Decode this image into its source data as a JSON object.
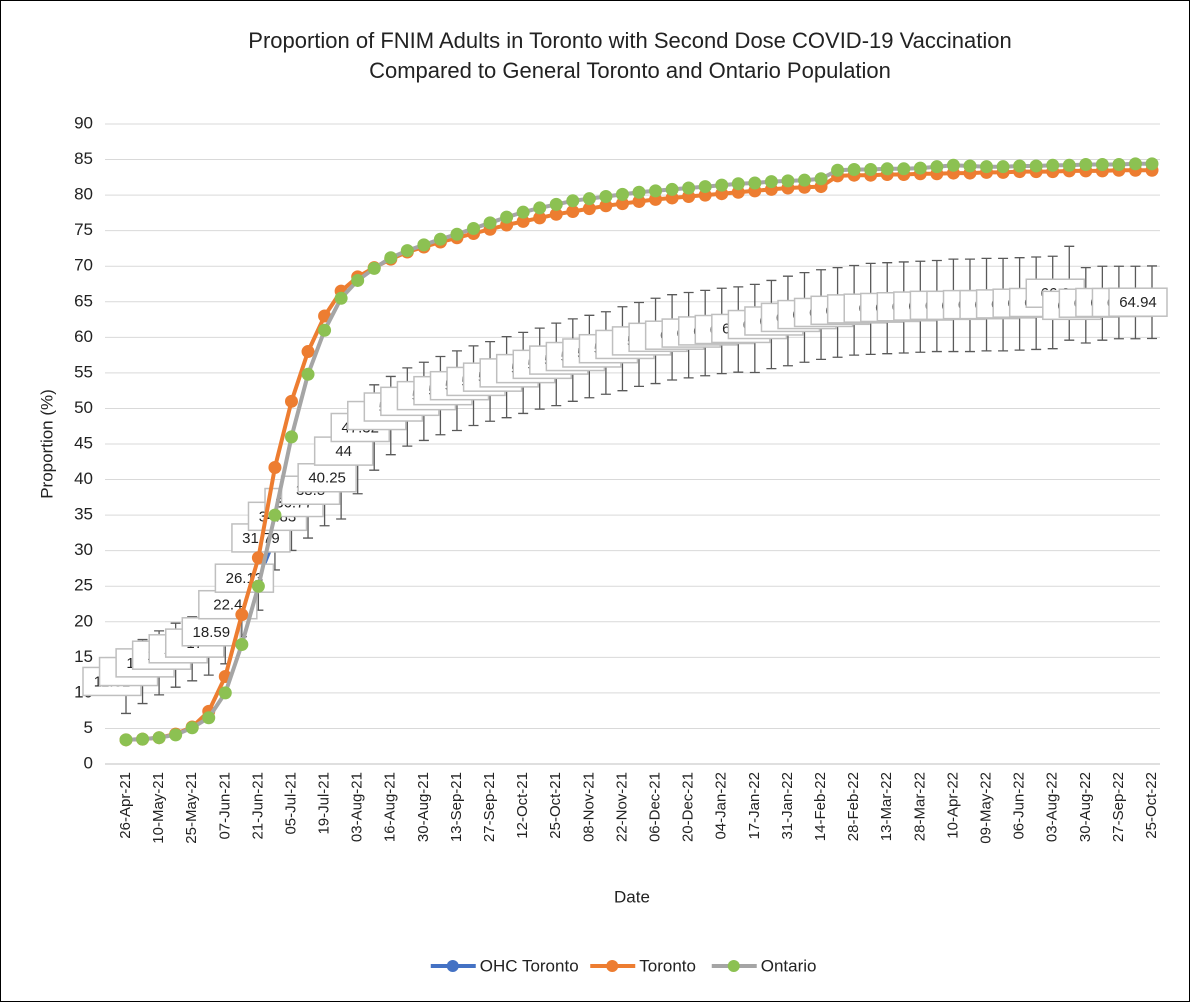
{
  "chart_data": {
    "type": "line",
    "title": [
      "Proportion of FNIM Adults in Toronto with Second Dose COVID-19 Vaccination",
      "Compared to General Toronto and Ontario Population"
    ],
    "x_label": "Date",
    "y_label": "Proportion (%)",
    "categories": [
      "26-Apr-21",
      null,
      "10-May-21",
      null,
      "25-May-21",
      null,
      "07-Jun-21",
      null,
      "21-Jun-21",
      null,
      "05-Jul-21",
      null,
      "19-Jul-21",
      null,
      "03-Aug-21",
      null,
      "16-Aug-21",
      null,
      "30-Aug-21",
      null,
      "13-Sep-21",
      null,
      "27-Sep-21",
      null,
      "12-Oct-21",
      null,
      "25-Oct-21",
      null,
      "08-Nov-21",
      null,
      "22-Nov-21",
      null,
      "06-Dec-21",
      null,
      "20-Dec-21",
      null,
      "04-Jan-22",
      null,
      "17-Jan-22",
      null,
      "31-Jan-22",
      null,
      "14-Feb-22",
      null,
      "28-Feb-22",
      null,
      "13-Mar-22",
      null,
      "28-Mar-22",
      null,
      "10-Apr-22",
      null,
      "09-May-22",
      null,
      "06-Jun-22",
      null,
      "03-Aug-22",
      null,
      "30-Aug-22",
      null,
      "27-Sep-22",
      null,
      "25-Oct-22"
    ],
    "ylim": [
      0,
      90
    ],
    "yticks": [
      0,
      5,
      10,
      15,
      20,
      25,
      30,
      35,
      40,
      45,
      50,
      55,
      60,
      65,
      70,
      75,
      80,
      85,
      90
    ],
    "grid": true,
    "legend": "bottom",
    "series": [
      {
        "name": "OHC Toronto",
        "color": "#4472c4",
        "marker_color": "#4472c4",
        "data_labels": true,
        "values": [
          11.61,
          13.0,
          14.22,
          15.3,
          16.2,
          17.0,
          18.59,
          22.4,
          26.13,
          31.79,
          34.83,
          36.77,
          38.5,
          40.25,
          44.0,
          47.32,
          49.0,
          50.2,
          51.0,
          51.8,
          52.5,
          53.2,
          53.8,
          54.4,
          55.0,
          55.6,
          56.2,
          56.8,
          57.3,
          57.8,
          58.4,
          59.0,
          59.5,
          60.0,
          60.3,
          60.6,
          60.9,
          61.1,
          61.25,
          61.8,
          62.3,
          62.8,
          63.2,
          63.5,
          63.8,
          64.0,
          64.1,
          64.2,
          64.3,
          64.4,
          64.5,
          64.5,
          64.6,
          64.6,
          64.7,
          64.8,
          64.9,
          66.2,
          64.5,
          64.8,
          64.9,
          64.9,
          64.94
        ],
        "errors": [
          4.5,
          4.5,
          4.5,
          4.5,
          4.5,
          4.5,
          4.5,
          4.5,
          4.5,
          4.5,
          4.8,
          5.0,
          5.0,
          5.8,
          6.0,
          6.0,
          5.5,
          5.5,
          5.5,
          5.5,
          5.6,
          5.6,
          5.6,
          5.7,
          5.7,
          5.7,
          5.8,
          5.8,
          5.8,
          5.8,
          5.9,
          5.9,
          6.0,
          6.0,
          6.0,
          6.0,
          6.0,
          6.0,
          6.2,
          6.2,
          6.3,
          6.3,
          6.3,
          6.3,
          6.3,
          6.4,
          6.4,
          6.4,
          6.4,
          6.4,
          6.5,
          6.5,
          6.5,
          6.5,
          6.5,
          6.5,
          6.5,
          6.6,
          5.3,
          5.2,
          5.1,
          5.1,
          5.1
        ]
      },
      {
        "name": "Toronto",
        "color": "#ed7d31",
        "marker_color": "#ed7d31",
        "values": [
          3.4,
          3.5,
          3.7,
          4.2,
          5.2,
          7.4,
          12.3,
          21.0,
          29.0,
          41.7,
          51.0,
          58.0,
          63.0,
          66.5,
          68.5,
          69.8,
          71.0,
          72.0,
          72.7,
          73.4,
          74.0,
          74.6,
          75.2,
          75.8,
          76.3,
          76.8,
          77.3,
          77.7,
          78.1,
          78.5,
          78.8,
          79.1,
          79.4,
          79.6,
          79.8,
          80.0,
          80.2,
          80.4,
          80.6,
          80.8,
          81.0,
          81.1,
          81.2,
          82.7,
          82.8,
          82.8,
          82.9,
          82.9,
          83.0,
          83.0,
          83.1,
          83.1,
          83.2,
          83.2,
          83.3,
          83.3,
          83.3,
          83.4,
          83.4,
          83.4,
          83.5,
          83.5,
          83.5
        ]
      },
      {
        "name": "Ontario",
        "color": "#a5a5a5",
        "marker_color": "#8cc152",
        "values": [
          3.4,
          3.5,
          3.7,
          4.1,
          5.1,
          6.5,
          10.0,
          16.8,
          25.0,
          35.0,
          46.0,
          54.8,
          61.0,
          65.5,
          68.0,
          69.7,
          71.2,
          72.2,
          73.0,
          73.8,
          74.5,
          75.3,
          76.1,
          76.9,
          77.6,
          78.2,
          78.7,
          79.2,
          79.5,
          79.8,
          80.1,
          80.4,
          80.6,
          80.8,
          81.0,
          81.2,
          81.4,
          81.6,
          81.7,
          81.9,
          82.0,
          82.1,
          82.3,
          83.5,
          83.6,
          83.6,
          83.7,
          83.7,
          83.8,
          84.0,
          84.2,
          84.1,
          84.0,
          84.0,
          84.1,
          84.1,
          84.2,
          84.2,
          84.3,
          84.3,
          84.3,
          84.4,
          84.4
        ]
      }
    ]
  }
}
